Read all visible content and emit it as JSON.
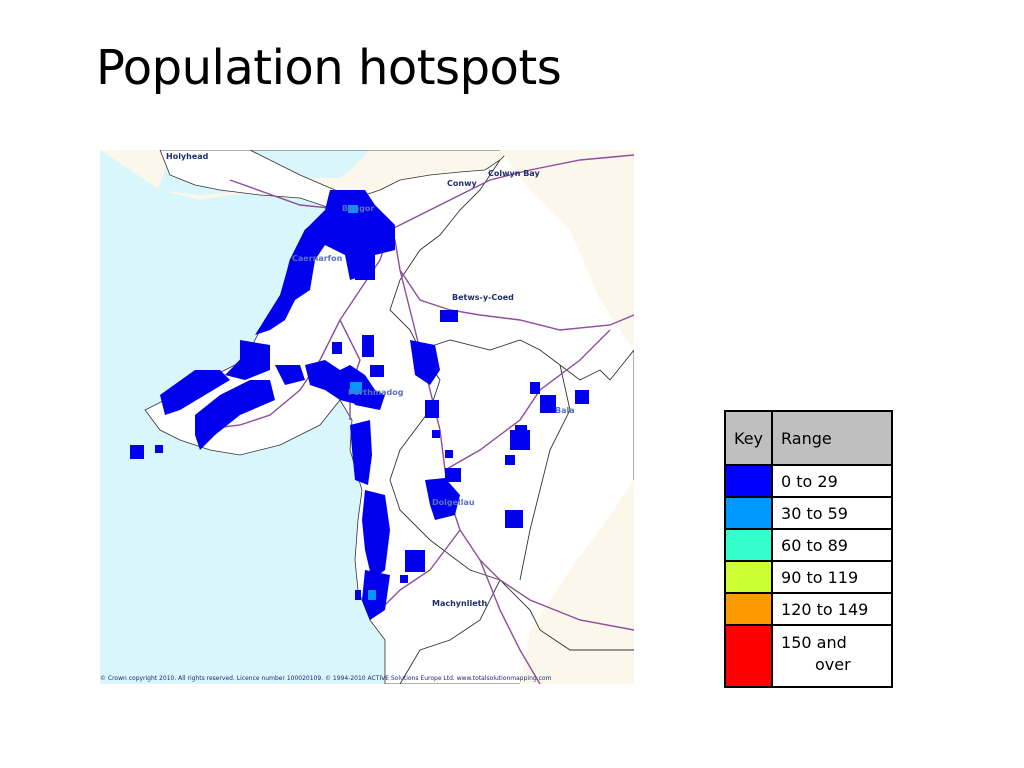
{
  "slide": {
    "title": "Population hotspots"
  },
  "map": {
    "places": [
      {
        "name": "Holyhead"
      },
      {
        "name": "Conwy"
      },
      {
        "name": "Colwyn Bay"
      },
      {
        "name": "Bangor"
      },
      {
        "name": "Caernarfon"
      },
      {
        "name": "Betws-y-Coed"
      },
      {
        "name": "Porthmadog"
      },
      {
        "name": "Bala"
      },
      {
        "name": "Dolgellau"
      },
      {
        "name": "Machynlleth"
      }
    ],
    "copyright": "© Crown copyright 2010.  All rights reserved.  Licence number 100020109. © 1994-2010 ACTIVE Solutions Europe Ltd. www.totalsolutionmapping.com",
    "colors": {
      "sea": "#d8f6fb",
      "land": "#ffffff",
      "offmap": "#fbf7ea",
      "road": "#8e4d9e",
      "hotspot": "#0000ee",
      "border": "#333333"
    }
  },
  "key": {
    "header": {
      "key": "Key",
      "range": "Range"
    },
    "rows": [
      {
        "color": "#0000ff",
        "label": "0 to 29"
      },
      {
        "color": "#0099ff",
        "label": "30 to 59"
      },
      {
        "color": "#33ffcc",
        "label": "60 to 89"
      },
      {
        "color": "#ccff33",
        "label": "90 to 119"
      },
      {
        "color": "#ff9900",
        "label": "120 to 149"
      },
      {
        "color": "#ff0000",
        "label": "150 and",
        "label2": "over"
      }
    ]
  }
}
